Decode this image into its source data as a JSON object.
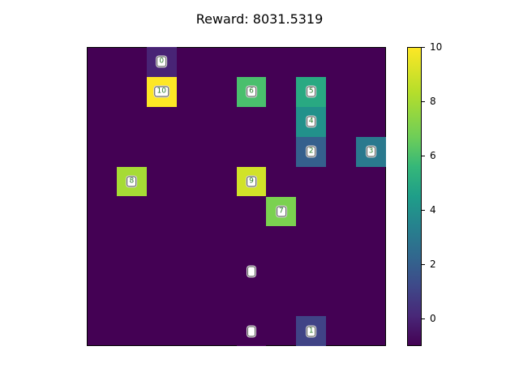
{
  "title": "Reward: 8031.5319",
  "colormap": "viridis",
  "colorbar": {
    "min": -1,
    "max": 10,
    "ticks": [
      "10",
      "8",
      "6",
      "4",
      "2",
      "0"
    ]
  },
  "grid_size": [
    10,
    10
  ],
  "cells": [
    {
      "row": 0,
      "col": 2,
      "value": 0,
      "label": "0"
    },
    {
      "row": 1,
      "col": 2,
      "value": 10,
      "label": "10"
    },
    {
      "row": 1,
      "col": 5,
      "value": 6,
      "label": "6"
    },
    {
      "row": 1,
      "col": 7,
      "value": 5,
      "label": "5"
    },
    {
      "row": 2,
      "col": 7,
      "value": 4,
      "label": "4"
    },
    {
      "row": 3,
      "col": 7,
      "value": 2,
      "label": "2"
    },
    {
      "row": 3,
      "col": 9,
      "value": 3,
      "label": "3"
    },
    {
      "row": 4,
      "col": 1,
      "value": 8,
      "label": "8"
    },
    {
      "row": 4,
      "col": 5,
      "value": 9,
      "label": "9"
    },
    {
      "row": 5,
      "col": 6,
      "value": 7,
      "label": "7"
    },
    {
      "row": 7,
      "col": 5,
      "value": -1,
      "label": ""
    },
    {
      "row": 9,
      "col": 5,
      "value": -1,
      "label": ""
    },
    {
      "row": 9,
      "col": 7,
      "value": 1,
      "label": "1"
    }
  ]
}
